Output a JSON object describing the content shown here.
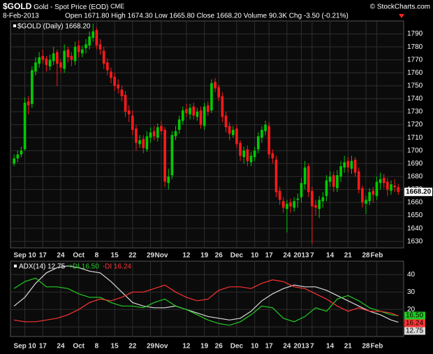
{
  "header": {
    "symbol": "$GOLD",
    "name": "Gold - Spot Price (EOD)",
    "exchange": "CME",
    "credit": "© StockCharts.com",
    "date": "8-Feb-2013",
    "quote": "Open 1671.80  High 1674.30  Low 1665.80  Close 1668.20  Volume 90.3K  Chg -3.50 (-0.21%)"
  },
  "chart_data": [
    {
      "type": "candlestick",
      "legend": "$GOLD (Daily) 1668.20",
      "last_label": "1668.20",
      "up_color": "#00cc00",
      "down_color": "#ff1a1a",
      "grid": true,
      "xlim": [
        -1,
        108.5
      ],
      "ylim": [
        1625,
        1800
      ],
      "yticks": [
        1630,
        1640,
        1650,
        1660,
        1670,
        1680,
        1690,
        1700,
        1710,
        1720,
        1730,
        1740,
        1750,
        1760,
        1770,
        1780,
        1790
      ],
      "xticks": [
        {
          "value": 3,
          "label": "Sep 10"
        },
        {
          "value": 8,
          "label": "17"
        },
        {
          "value": 13,
          "label": "24"
        },
        {
          "value": 18,
          "label": "Oct"
        },
        {
          "value": 23,
          "label": "8"
        },
        {
          "value": 28,
          "label": "15"
        },
        {
          "value": 33,
          "label": "22"
        },
        {
          "value": 38,
          "label": "29"
        },
        {
          "value": 41,
          "label": "Nov"
        },
        {
          "value": 48,
          "label": "12"
        },
        {
          "value": 53,
          "label": "19"
        },
        {
          "value": 57,
          "label": "26"
        },
        {
          "value": 62,
          "label": "Dec"
        },
        {
          "value": 67,
          "label": "10"
        },
        {
          "value": 71,
          "label": "17"
        },
        {
          "value": 76,
          "label": "24"
        },
        {
          "value": 80,
          "label": "2013"
        },
        {
          "value": 83,
          "label": "7"
        },
        {
          "value": 88,
          "label": "14"
        },
        {
          "value": 93,
          "label": "21"
        },
        {
          "value": 98,
          "label": "28"
        },
        {
          "value": 101,
          "label": "Feb"
        }
      ],
      "open": [
        1690,
        1694,
        1697,
        1701,
        1738,
        1736,
        1761,
        1767,
        1773,
        1771,
        1765,
        1769,
        1776,
        1768,
        1763,
        1778,
        1773,
        1769,
        1781,
        1775,
        1779,
        1781,
        1787,
        1793,
        1782,
        1777,
        1768,
        1761,
        1757,
        1751,
        1747,
        1743,
        1731,
        1727,
        1717,
        1705,
        1709,
        1701,
        1710,
        1715,
        1710,
        1719,
        1716,
        1675,
        1681,
        1711,
        1716,
        1723,
        1732,
        1728,
        1734,
        1726,
        1731,
        1719,
        1735,
        1731,
        1753,
        1749,
        1742,
        1727,
        1719,
        1712,
        1717,
        1706,
        1695,
        1701,
        1691,
        1695,
        1701,
        1710,
        1715,
        1719,
        1698,
        1693,
        1669,
        1661,
        1655,
        1660,
        1656,
        1662,
        1664,
        1674,
        1688,
        1669,
        1658,
        1655,
        1661,
        1665,
        1676,
        1681,
        1671,
        1680,
        1687,
        1692,
        1686,
        1693,
        1684,
        1671,
        1659,
        1661,
        1669,
        1665,
        1675,
        1679,
        1676,
        1669,
        1673,
        1671.8
      ],
      "high": [
        1697,
        1700,
        1703,
        1741,
        1742,
        1765,
        1772,
        1776,
        1778,
        1773,
        1774,
        1780,
        1778,
        1770,
        1782,
        1780,
        1776,
        1784,
        1785,
        1781,
        1786,
        1792,
        1798,
        1795,
        1786,
        1780,
        1771,
        1764,
        1760,
        1755,
        1750,
        1746,
        1735,
        1731,
        1720,
        1712,
        1712,
        1715,
        1718,
        1719,
        1721,
        1723,
        1718,
        1686,
        1715,
        1719,
        1727,
        1734,
        1736,
        1736,
        1737,
        1733,
        1734,
        1737,
        1738,
        1755,
        1756,
        1751,
        1745,
        1730,
        1722,
        1719,
        1720,
        1708,
        1703,
        1704,
        1699,
        1703,
        1714,
        1719,
        1723,
        1722,
        1701,
        1696,
        1672,
        1664,
        1662,
        1663,
        1664,
        1667,
        1679,
        1692,
        1690,
        1672,
        1662,
        1665,
        1668,
        1681,
        1684,
        1684,
        1685,
        1692,
        1696,
        1695,
        1696,
        1695,
        1687,
        1673,
        1665,
        1671,
        1672,
        1680,
        1683,
        1682,
        1679,
        1677,
        1678,
        1674.3
      ],
      "low": [
        1688,
        1691,
        1695,
        1700,
        1728,
        1733,
        1758,
        1764,
        1767,
        1761,
        1762,
        1766,
        1750,
        1760,
        1760,
        1768,
        1765,
        1766,
        1772,
        1772,
        1775,
        1778,
        1784,
        1778,
        1774,
        1763,
        1758,
        1752,
        1746,
        1744,
        1738,
        1726,
        1722,
        1712,
        1700,
        1702,
        1698,
        1699,
        1706,
        1708,
        1707,
        1712,
        1672,
        1670,
        1678,
        1708,
        1713,
        1720,
        1726,
        1724,
        1724,
        1723,
        1717,
        1716,
        1727,
        1729,
        1745,
        1738,
        1722,
        1714,
        1708,
        1710,
        1702,
        1692,
        1690,
        1688,
        1688,
        1692,
        1698,
        1706,
        1712,
        1694,
        1690,
        1664,
        1658,
        1652,
        1637,
        1652,
        1653,
        1656,
        1660,
        1670,
        1664,
        1628,
        1650,
        1648,
        1656,
        1661,
        1672,
        1668,
        1668,
        1676,
        1683,
        1683,
        1682,
        1680,
        1667,
        1656,
        1651,
        1658,
        1660,
        1662,
        1670,
        1671,
        1665,
        1666,
        1668,
        1665.8
      ],
      "close": [
        1694,
        1697,
        1700,
        1737,
        1735,
        1762,
        1768,
        1772,
        1770,
        1766,
        1770,
        1775,
        1767,
        1764,
        1777,
        1772,
        1770,
        1780,
        1776,
        1778,
        1782,
        1788,
        1792,
        1781,
        1778,
        1767,
        1762,
        1756,
        1750,
        1748,
        1742,
        1730,
        1728,
        1716,
        1706,
        1708,
        1702,
        1711,
        1714,
        1711,
        1718,
        1715,
        1676,
        1680,
        1712,
        1715,
        1724,
        1731,
        1729,
        1733,
        1727,
        1730,
        1720,
        1734,
        1730,
        1752,
        1748,
        1741,
        1726,
        1718,
        1713,
        1716,
        1705,
        1696,
        1700,
        1692,
        1696,
        1700,
        1711,
        1716,
        1720,
        1697,
        1694,
        1668,
        1662,
        1656,
        1659,
        1657,
        1661,
        1663,
        1675,
        1687,
        1668,
        1657,
        1656,
        1662,
        1664,
        1677,
        1680,
        1672,
        1681,
        1688,
        1691,
        1687,
        1692,
        1683,
        1670,
        1660,
        1662,
        1668,
        1666,
        1676,
        1678,
        1675,
        1670,
        1674,
        1671.7,
        1668.2
      ]
    },
    {
      "type": "line",
      "grid": true,
      "xlim": [
        -1,
        108.5
      ],
      "ylim": [
        4.5,
        47.7
      ],
      "yticks": [
        10,
        20,
        30,
        40
      ],
      "xticks": [
        {
          "value": 3,
          "label": "Sep 10"
        },
        {
          "value": 8,
          "label": "17"
        },
        {
          "value": 13,
          "label": "24"
        },
        {
          "value": 18,
          "label": "Oct"
        },
        {
          "value": 23,
          "label": "8"
        },
        {
          "value": 28,
          "label": "15"
        },
        {
          "value": 33,
          "label": "22"
        },
        {
          "value": 38,
          "label": "29"
        },
        {
          "value": 41,
          "label": "Nov"
        },
        {
          "value": 48,
          "label": "12"
        },
        {
          "value": 53,
          "label": "19"
        },
        {
          "value": 57,
          "label": "26"
        },
        {
          "value": 62,
          "label": "Dec"
        },
        {
          "value": 67,
          "label": "10"
        },
        {
          "value": 71,
          "label": "17"
        },
        {
          "value": 76,
          "label": "24"
        },
        {
          "value": 80,
          "label": "2013"
        },
        {
          "value": 83,
          "label": "7"
        },
        {
          "value": 88,
          "label": "14"
        },
        {
          "value": 93,
          "label": "21"
        },
        {
          "value": 98,
          "label": "28"
        },
        {
          "value": 101,
          "label": "Feb"
        }
      ],
      "x": [
        0,
        3,
        6,
        9,
        12,
        15,
        18,
        21,
        24,
        27,
        30,
        33,
        36,
        39,
        42,
        45,
        48,
        51,
        54,
        57,
        60,
        63,
        66,
        69,
        72,
        75,
        78,
        81,
        84,
        87,
        90,
        93,
        96,
        99,
        102,
        105,
        107
      ],
      "series": [
        {
          "name": "ADX(14) 12.75",
          "color": "#d9d9d9",
          "last_label": "12.75",
          "values": [
            22,
            27,
            35,
            41,
            44,
            45,
            44,
            42,
            41,
            36,
            30,
            24,
            22,
            21,
            21,
            22,
            20,
            18,
            16,
            15,
            14,
            15,
            19,
            25,
            29,
            32,
            34,
            33,
            33,
            31,
            28,
            25,
            22,
            19,
            17,
            14,
            12.75
          ]
        },
        {
          "name": "+DI 16.50",
          "color": "#22cc22",
          "last_label": "16.50",
          "values": [
            32,
            36,
            38,
            33,
            33,
            32,
            29,
            27,
            27,
            24,
            22,
            22,
            21,
            24,
            26,
            22,
            20,
            17,
            14,
            12,
            11,
            13,
            17,
            22,
            21,
            15,
            13,
            16,
            21,
            19,
            26,
            28,
            25,
            21,
            19,
            17,
            16.5
          ]
        },
        {
          "name": "-DI 16.24",
          "color": "#ff3333",
          "last_label": "16.24",
          "values": [
            14,
            13,
            13,
            14,
            15,
            17,
            20,
            24,
            26,
            25,
            27,
            30,
            30,
            32,
            34,
            30,
            27,
            25,
            26,
            31,
            33,
            33,
            32,
            35,
            37,
            36,
            33,
            32,
            29,
            26,
            22,
            19,
            21,
            19,
            19,
            18,
            16.24
          ]
        }
      ]
    }
  ]
}
